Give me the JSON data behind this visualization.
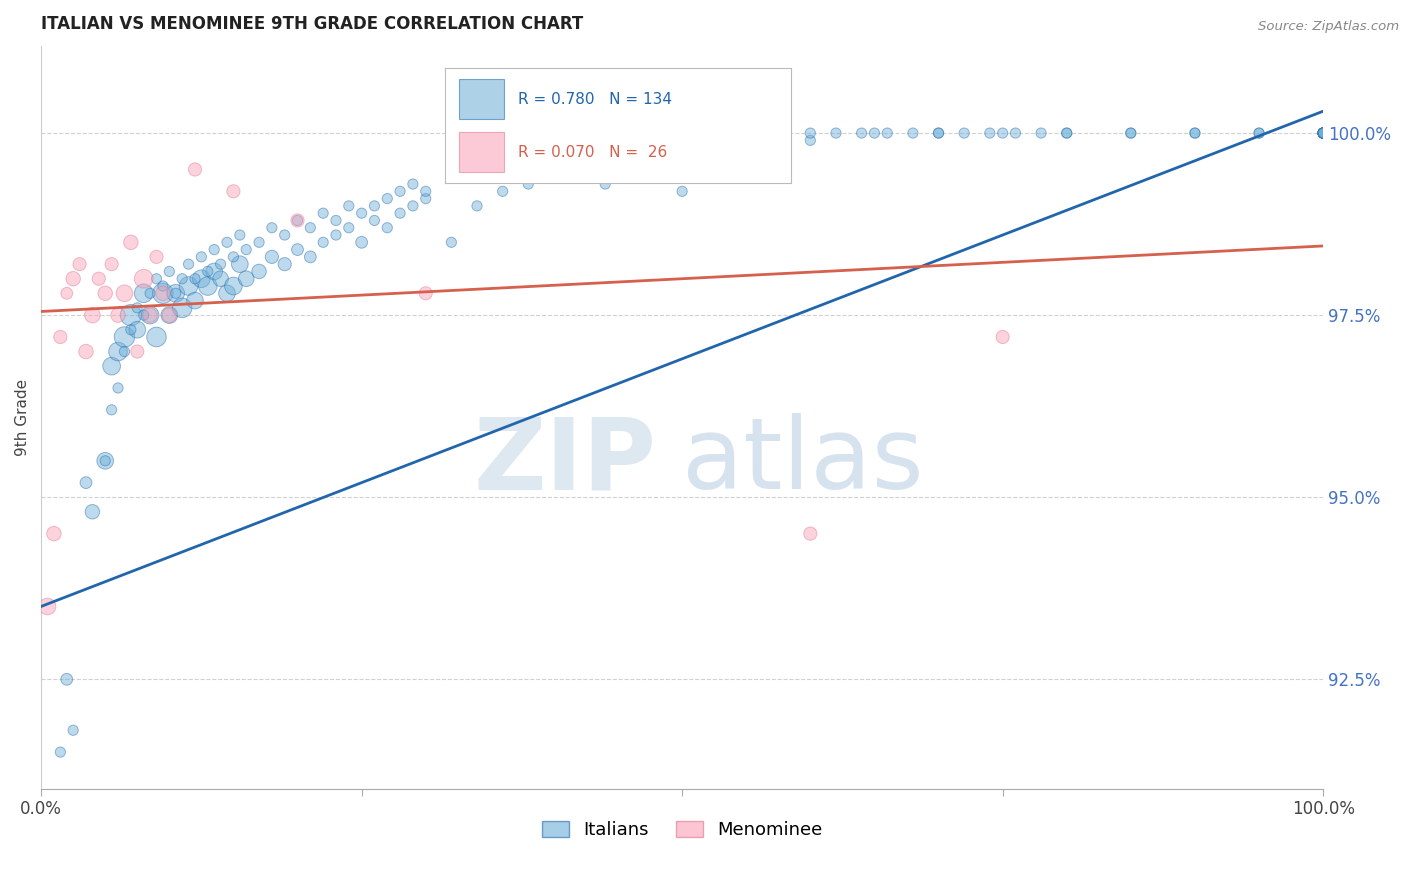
{
  "title": "ITALIAN VS MENOMINEE 9TH GRADE CORRELATION CHART",
  "source": "Source: ZipAtlas.com",
  "ylabel": "9th Grade",
  "ytick_labels": [
    "92.5%",
    "95.0%",
    "97.5%",
    "100.0%"
  ],
  "ytick_values": [
    92.5,
    95.0,
    97.5,
    100.0
  ],
  "xlim": [
    0.0,
    100.0
  ],
  "ylim": [
    91.0,
    101.2
  ],
  "legend_blue_r": "0.780",
  "legend_blue_n": "134",
  "legend_pink_r": "0.070",
  "legend_pink_n": " 26",
  "blue_color": "#6baed6",
  "pink_color": "#fa9fb5",
  "blue_line_color": "#2166ac",
  "pink_line_color": "#d6604d",
  "blue_scatter_x": [
    1.5,
    2.0,
    2.5,
    3.5,
    4.0,
    5.0,
    5.5,
    6.0,
    6.5,
    7.0,
    7.5,
    8.0,
    8.5,
    9.0,
    9.5,
    10.0,
    10.5,
    11.0,
    11.5,
    12.0,
    12.5,
    13.0,
    13.5,
    14.0,
    14.5,
    15.0,
    15.5,
    16.0,
    17.0,
    18.0,
    19.0,
    20.0,
    21.0,
    22.0,
    23.0,
    24.0,
    25.0,
    26.0,
    27.0,
    28.0,
    29.0,
    30.0,
    32.0,
    34.0,
    36.0,
    38.0,
    40.0,
    42.0,
    44.0,
    46.0,
    48.0,
    50.0,
    52.0,
    54.0,
    56.0,
    58.0,
    60.0,
    62.0,
    64.0,
    66.0,
    68.0,
    70.0,
    72.0,
    74.0,
    76.0,
    78.0,
    80.0,
    85.0,
    90.0,
    95.0,
    100.0,
    5.0,
    5.5,
    6.0,
    6.5,
    7.0,
    7.5,
    8.0,
    8.5,
    9.0,
    9.5,
    10.0,
    10.5,
    11.0,
    11.5,
    12.0,
    12.5,
    13.0,
    13.5,
    14.0,
    14.5,
    15.0,
    15.5,
    16.0,
    17.0,
    18.0,
    19.0,
    20.0,
    21.0,
    22.0,
    23.0,
    24.0,
    25.0,
    26.0,
    27.0,
    28.0,
    29.0,
    30.0,
    32.0,
    34.0,
    36.0,
    38.0,
    40.0,
    42.0,
    44.0,
    46.0,
    48.0,
    50.0,
    55.0,
    60.0,
    65.0,
    70.0,
    75.0,
    80.0,
    85.0,
    90.0,
    95.0,
    100.0,
    100.0,
    100.0,
    100.0,
    100.0,
    100.0,
    100.0,
    100.0,
    100.0,
    100.0,
    100.0
  ],
  "blue_scatter_y": [
    91.5,
    92.5,
    91.8,
    95.2,
    94.8,
    95.5,
    96.8,
    97.0,
    97.2,
    97.5,
    97.3,
    97.8,
    97.5,
    97.2,
    97.8,
    97.5,
    97.8,
    97.6,
    97.9,
    97.7,
    98.0,
    97.9,
    98.1,
    98.0,
    97.8,
    97.9,
    98.2,
    98.0,
    98.1,
    98.3,
    98.2,
    98.4,
    98.3,
    98.5,
    98.6,
    98.7,
    98.5,
    98.8,
    98.7,
    98.9,
    99.0,
    99.1,
    98.5,
    99.0,
    99.2,
    99.3,
    99.4,
    99.5,
    99.3,
    99.5,
    99.6,
    99.2,
    99.7,
    99.8,
    99.6,
    99.7,
    99.9,
    100.0,
    100.0,
    100.0,
    100.0,
    100.0,
    100.0,
    100.0,
    100.0,
    100.0,
    100.0,
    100.0,
    100.0,
    100.0,
    100.0,
    95.5,
    96.2,
    96.5,
    97.0,
    97.3,
    97.6,
    97.5,
    97.8,
    98.0,
    97.9,
    98.1,
    97.8,
    98.0,
    98.2,
    98.0,
    98.3,
    98.1,
    98.4,
    98.2,
    98.5,
    98.3,
    98.6,
    98.4,
    98.5,
    98.7,
    98.6,
    98.8,
    98.7,
    98.9,
    98.8,
    99.0,
    98.9,
    99.0,
    99.1,
    99.2,
    99.3,
    99.2,
    99.5,
    99.6,
    99.7,
    99.8,
    99.9,
    100.0,
    100.0,
    100.0,
    100.0,
    100.0,
    100.0,
    100.0,
    100.0,
    100.0,
    100.0,
    100.0,
    100.0,
    100.0,
    100.0,
    100.0,
    100.0,
    100.0,
    100.0,
    100.0,
    100.0,
    100.0,
    100.0,
    100.0,
    100.0,
    100.0,
    100.0
  ],
  "blue_scatter_s": [
    30,
    40,
    30,
    40,
    60,
    80,
    90,
    100,
    120,
    130,
    80,
    100,
    90,
    110,
    120,
    80,
    90,
    110,
    100,
    80,
    90,
    100,
    80,
    70,
    80,
    90,
    80,
    70,
    60,
    50,
    50,
    40,
    40,
    30,
    30,
    30,
    40,
    30,
    30,
    30,
    30,
    30,
    30,
    30,
    30,
    30,
    30,
    30,
    30,
    30,
    30,
    30,
    30,
    30,
    30,
    30,
    30,
    30,
    30,
    30,
    30,
    30,
    30,
    30,
    30,
    30,
    30,
    30,
    30,
    30,
    30,
    30,
    30,
    30,
    30,
    30,
    30,
    30,
    30,
    30,
    30,
    30,
    30,
    30,
    30,
    30,
    30,
    30,
    30,
    30,
    30,
    30,
    30,
    30,
    30,
    30,
    30,
    30,
    30,
    30,
    30,
    30,
    30,
    30,
    30,
    30,
    30,
    30,
    30,
    30,
    30,
    30,
    30,
    30,
    30,
    30,
    30,
    30,
    30,
    30,
    30,
    30,
    30,
    30,
    30,
    30,
    30,
    30,
    30,
    30,
    30,
    30,
    30,
    30,
    30,
    30,
    30
  ],
  "pink_scatter_x": [
    0.5,
    1.0,
    1.5,
    2.0,
    2.5,
    3.0,
    3.5,
    4.0,
    4.5,
    5.0,
    5.5,
    6.0,
    6.5,
    7.0,
    7.5,
    8.0,
    8.5,
    9.0,
    9.5,
    10.0,
    12.0,
    15.0,
    20.0,
    30.0,
    60.0,
    75.0
  ],
  "pink_scatter_y": [
    93.5,
    94.5,
    97.2,
    97.8,
    98.0,
    98.2,
    97.0,
    97.5,
    98.0,
    97.8,
    98.2,
    97.5,
    97.8,
    98.5,
    97.0,
    98.0,
    97.5,
    98.3,
    97.8,
    97.5,
    99.5,
    99.2,
    98.8,
    97.8,
    94.5,
    97.2
  ],
  "pink_scatter_s": [
    80,
    60,
    50,
    40,
    60,
    50,
    60,
    70,
    50,
    60,
    50,
    60,
    80,
    60,
    50,
    100,
    60,
    50,
    60,
    60,
    50,
    50,
    50,
    50,
    50,
    50
  ],
  "blue_trendline_x": [
    0.0,
    100.0
  ],
  "blue_trendline_y": [
    93.5,
    100.3
  ],
  "pink_trendline_x": [
    0.0,
    100.0
  ],
  "pink_trendline_y": [
    97.55,
    98.45
  ]
}
